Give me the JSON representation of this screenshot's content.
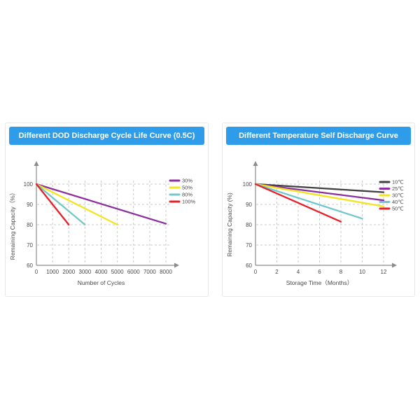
{
  "page": {
    "background_color": "#ffffff",
    "panel_border_color": "#e6e8eb",
    "header_bg_color": "#2e9ce8",
    "header_text_color": "#ffffff",
    "grid_color": "#c9c9c9",
    "axis_color": "#8c8c8c",
    "text_color": "#4a4a4a"
  },
  "chart_data": [
    {
      "type": "line",
      "title": "Different DOD Discharge Cycle Life Curve (0.5C)",
      "xlabel": "Number of Cycles",
      "ylabel": "Remaining Capacity（%）",
      "xlim": [
        0,
        8000
      ],
      "ylim": [
        60,
        100
      ],
      "xticks": [
        0,
        1000,
        2000,
        3000,
        4000,
        5000,
        6000,
        7000,
        8000
      ],
      "yticks": [
        60,
        70,
        80,
        90,
        100
      ],
      "grid": true,
      "legend_position": "top-right",
      "series": [
        {
          "name": "30%",
          "color": "#8b2f9e",
          "points": [
            [
              0,
              100
            ],
            [
              8000,
              80.5
            ]
          ]
        },
        {
          "name": "50%",
          "color": "#f2e41e",
          "points": [
            [
              0,
              100
            ],
            [
              5000,
              80
            ]
          ]
        },
        {
          "name": "80%",
          "color": "#73c9c5",
          "points": [
            [
              0,
              100
            ],
            [
              3000,
              80
            ]
          ]
        },
        {
          "name": "100%",
          "color": "#e6212a",
          "points": [
            [
              0,
              100
            ],
            [
              2000,
              80
            ]
          ]
        }
      ]
    },
    {
      "type": "line",
      "title": "Different Temperature Self Discharge Curve",
      "xlabel": "Storage Time（Months）",
      "ylabel": "Remaining Capacity (%)",
      "xlim": [
        0,
        12
      ],
      "ylim": [
        60,
        100
      ],
      "xticks": [
        0,
        2,
        4,
        6,
        8,
        10,
        12
      ],
      "yticks": [
        60,
        70,
        80,
        90,
        100
      ],
      "grid": true,
      "legend_position": "top-right",
      "series": [
        {
          "name": "10℃",
          "color": "#3f3f41",
          "points": [
            [
              0,
              100
            ],
            [
              12,
              96
            ]
          ]
        },
        {
          "name": "25℃",
          "color": "#8b2f9e",
          "points": [
            [
              0,
              100
            ],
            [
              12,
              92
            ]
          ]
        },
        {
          "name": "30℃",
          "color": "#f2e41e",
          "points": [
            [
              0,
              100
            ],
            [
              12,
              89
            ]
          ]
        },
        {
          "name": "40℃",
          "color": "#6fc7cd",
          "points": [
            [
              0,
              100
            ],
            [
              10,
              83
            ]
          ]
        },
        {
          "name": "50℃",
          "color": "#e6212a",
          "points": [
            [
              0,
              100
            ],
            [
              8,
              81.5
            ]
          ]
        }
      ]
    }
  ]
}
